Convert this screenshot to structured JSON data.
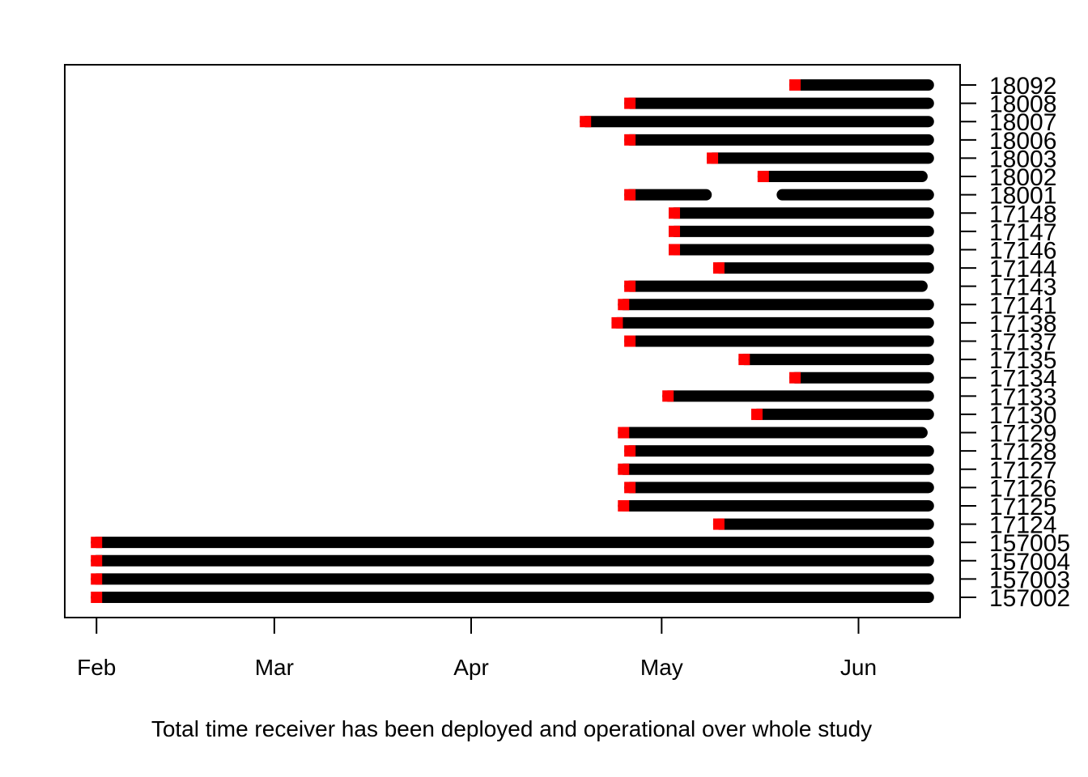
{
  "chart_data": {
    "type": "timeline",
    "xlabel": "Total time receiver has been deployed and operational over whole study",
    "ylabel": "",
    "x_axis": {
      "ticks": [
        {
          "label": "Feb",
          "date": "2015-02-01"
        },
        {
          "label": "Mar",
          "date": "2015-03-01"
        },
        {
          "label": "Apr",
          "date": "2015-04-01"
        },
        {
          "label": "May",
          "date": "2015-05-01"
        },
        {
          "label": "Jun",
          "date": "2015-06-01"
        }
      ],
      "range": [
        "2015-01-27",
        "2015-06-17"
      ]
    },
    "colors": {
      "bar": "#000000",
      "start_marker": "#ff0000"
    },
    "receivers": [
      {
        "id": "157002",
        "start": "2015-02-01",
        "end": "2015-06-12"
      },
      {
        "id": "157003",
        "start": "2015-02-01",
        "end": "2015-06-12"
      },
      {
        "id": "157004",
        "start": "2015-02-01",
        "end": "2015-06-12"
      },
      {
        "id": "157005",
        "start": "2015-02-01",
        "end": "2015-06-12"
      },
      {
        "id": "17124",
        "start": "2015-05-10",
        "end": "2015-06-12"
      },
      {
        "id": "17125",
        "start": "2015-04-25",
        "end": "2015-06-12"
      },
      {
        "id": "17126",
        "start": "2015-04-26",
        "end": "2015-06-12"
      },
      {
        "id": "17127",
        "start": "2015-04-25",
        "end": "2015-06-12"
      },
      {
        "id": "17128",
        "start": "2015-04-26",
        "end": "2015-06-12"
      },
      {
        "id": "17129",
        "start": "2015-04-25",
        "end": "2015-06-11"
      },
      {
        "id": "17130",
        "start": "2015-05-16",
        "end": "2015-06-12"
      },
      {
        "id": "17133",
        "start": "2015-05-02",
        "end": "2015-06-12"
      },
      {
        "id": "17134",
        "start": "2015-05-22",
        "end": "2015-06-12"
      },
      {
        "id": "17135",
        "start": "2015-05-14",
        "end": "2015-06-12"
      },
      {
        "id": "17137",
        "start": "2015-04-26",
        "end": "2015-06-12"
      },
      {
        "id": "17138",
        "start": "2015-04-24",
        "end": "2015-06-12"
      },
      {
        "id": "17141",
        "start": "2015-04-25",
        "end": "2015-06-12"
      },
      {
        "id": "17143",
        "start": "2015-04-26",
        "end": "2015-06-11"
      },
      {
        "id": "17144",
        "start": "2015-05-10",
        "end": "2015-06-12"
      },
      {
        "id": "17146",
        "start": "2015-05-03",
        "end": "2015-06-12"
      },
      {
        "id": "17147",
        "start": "2015-05-03",
        "end": "2015-06-12"
      },
      {
        "id": "17148",
        "start": "2015-05-03",
        "end": "2015-06-12"
      },
      {
        "id": "18001",
        "start": "2015-04-26",
        "end": "2015-05-08",
        "resume": "2015-05-20",
        "end2": "2015-06-12"
      },
      {
        "id": "18002",
        "start": "2015-05-17",
        "end": "2015-06-11"
      },
      {
        "id": "18003",
        "start": "2015-05-09",
        "end": "2015-06-12"
      },
      {
        "id": "18006",
        "start": "2015-04-26",
        "end": "2015-06-12"
      },
      {
        "id": "18007",
        "start": "2015-04-19",
        "end": "2015-06-12"
      },
      {
        "id": "18008",
        "start": "2015-04-26",
        "end": "2015-06-12"
      },
      {
        "id": "18092",
        "start": "2015-05-22",
        "end": "2015-06-12"
      }
    ]
  }
}
